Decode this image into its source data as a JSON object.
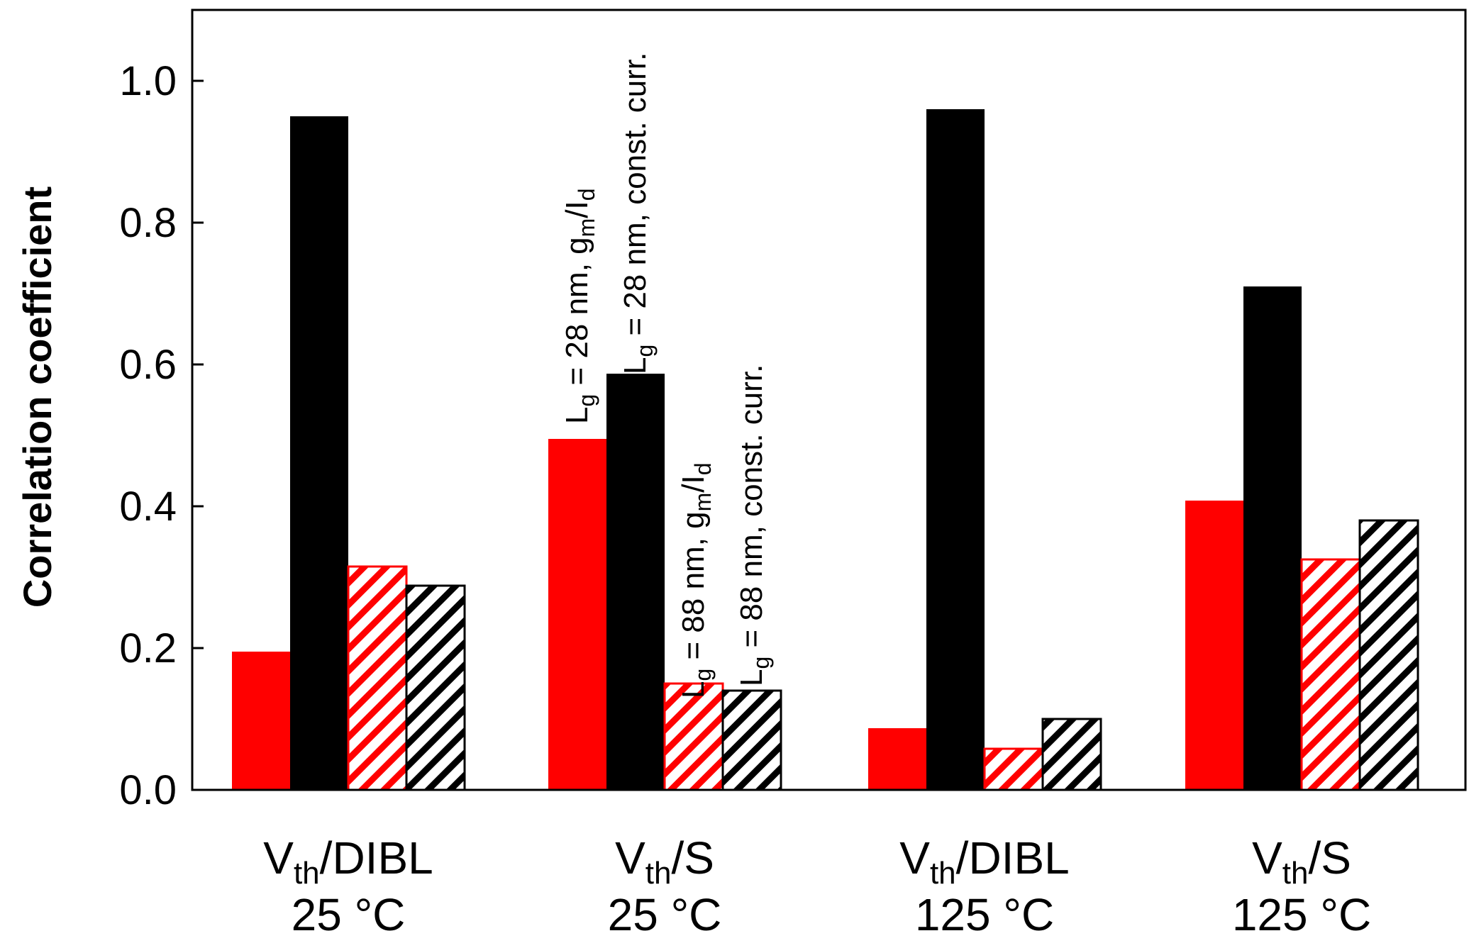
{
  "chart_data": {
    "type": "bar",
    "title": "",
    "xlabel": "",
    "ylabel": "Correlation coefficient",
    "ylim": [
      0.0,
      1.1
    ],
    "yticks": [
      "0.0",
      "0.2",
      "0.4",
      "0.6",
      "0.8",
      "1.0"
    ],
    "categories": [
      {
        "main": "V",
        "sub": "th",
        "rest": "/DIBL",
        "line2": "25 °C"
      },
      {
        "main": "V",
        "sub": "th",
        "rest": "/S",
        "line2": "25 °C"
      },
      {
        "main": "V",
        "sub": "th",
        "rest": "/DIBL",
        "line2": "125 °C"
      },
      {
        "main": "V",
        "sub": "th",
        "rest": "/S",
        "line2": "125 °C"
      }
    ],
    "series": [
      {
        "name": "Lg = 28 nm, gm/Id",
        "label_prefix": "L",
        "label_sub1": "g",
        "label_mid": " = 28 nm, g",
        "label_sub2": "m",
        "label_end": "/I",
        "label_sub3": "d",
        "color": "#ff0000",
        "pattern": "solid",
        "values": [
          0.195,
          0.495,
          0.087,
          0.408
        ]
      },
      {
        "name": "Lg = 28 nm, const. curr.",
        "label_prefix": "L",
        "label_sub1": "g",
        "label_rest": " = 28 nm, const. curr.",
        "color": "#000000",
        "pattern": "solid",
        "values": [
          0.95,
          0.587,
          0.96,
          0.71
        ]
      },
      {
        "name": "Lg = 88 nm, gm/Id",
        "label_prefix": "L",
        "label_sub1": "g",
        "label_mid": " = 88 nm, g",
        "label_sub2": "m",
        "label_end": "/I",
        "label_sub3": "d",
        "color": "#ff0000",
        "pattern": "hatched",
        "values": [
          0.315,
          0.15,
          0.058,
          0.325
        ]
      },
      {
        "name": "Lg = 88 nm, const. curr.",
        "label_prefix": "L",
        "label_sub1": "g",
        "label_rest": " = 88 nm, const. curr.",
        "color": "#000000",
        "pattern": "hatched",
        "values": [
          0.288,
          0.14,
          0.1,
          0.38
        ]
      }
    ],
    "legend": "rotated annotations above Vth/S 25 °C bars",
    "grid": false
  }
}
